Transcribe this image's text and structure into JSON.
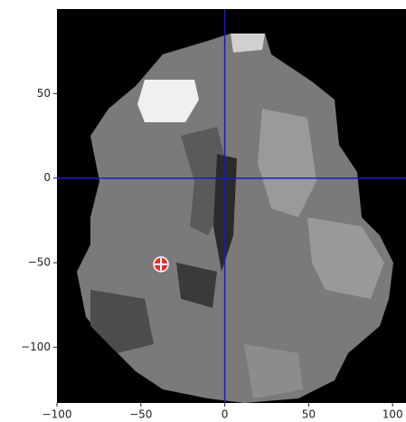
{
  "chart_data": {
    "type": "image",
    "xlim": [
      -100,
      108
    ],
    "ylim": [
      -133,
      100
    ],
    "xticks": [
      {
        "value": -100,
        "label": "−100"
      },
      {
        "value": -50,
        "label": "−50"
      },
      0,
      50,
      100
    ],
    "yticks": [
      50,
      0,
      {
        "value": -50,
        "label": "−50"
      },
      {
        "value": -100,
        "label": "−100"
      }
    ],
    "crosshair": {
      "x": 0,
      "y": 0,
      "color": "#1a1acc"
    },
    "marker": {
      "x": -38,
      "y": -51,
      "color": "#e03030"
    }
  }
}
